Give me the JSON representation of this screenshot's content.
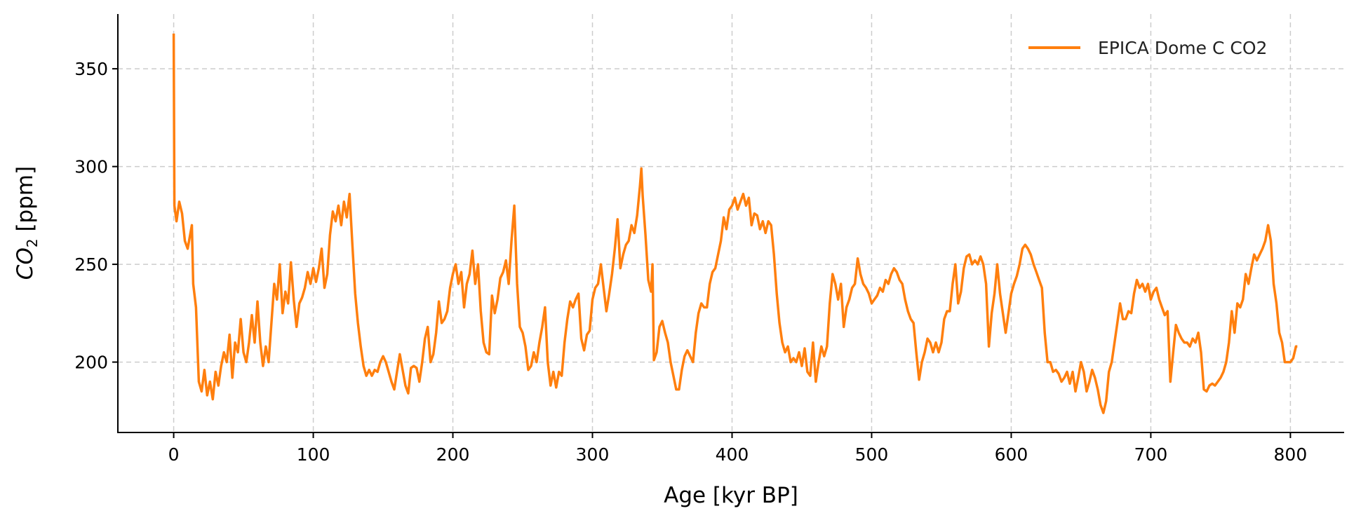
{
  "chart_data": {
    "type": "line",
    "title": "",
    "xlabel": "Age [kyr BP]",
    "ylabel_main": "CO",
    "ylabel_sub": "2",
    "ylabel_unit": " [ppm]",
    "xlim": [
      -40,
      838
    ],
    "ylim": [
      164,
      378
    ],
    "xticks": [
      0,
      100,
      200,
      300,
      400,
      500,
      600,
      700,
      800
    ],
    "yticks": [
      200,
      250,
      300,
      350
    ],
    "grid": true,
    "legend_position": "top-right",
    "series": [
      {
        "name": "EPICA Dome C CO2",
        "color": "#ff7f0e",
        "x": [
          0,
          0.5,
          2,
          4,
          6,
          8,
          10,
          12,
          13,
          14,
          16,
          18,
          20,
          22,
          24,
          26,
          28,
          30,
          32,
          34,
          36,
          38,
          40,
          42,
          44,
          46,
          48,
          50,
          52,
          54,
          56,
          58,
          60,
          62,
          64,
          66,
          68,
          70,
          72,
          74,
          76,
          78,
          80,
          82,
          84,
          86,
          88,
          90,
          92,
          94,
          96,
          98,
          100,
          102,
          104,
          106,
          108,
          110,
          112,
          114,
          116,
          118,
          120,
          122,
          124,
          126,
          128,
          130,
          132,
          134,
          136,
          138,
          140,
          142,
          144,
          146,
          148,
          150,
          152,
          154,
          156,
          158,
          160,
          162,
          164,
          166,
          168,
          170,
          172,
          174,
          176,
          178,
          180,
          182,
          184,
          186,
          188,
          190,
          192,
          194,
          196,
          198,
          200,
          202,
          204,
          206,
          208,
          210,
          212,
          214,
          216,
          218,
          220,
          222,
          224,
          226,
          228,
          230,
          232,
          234,
          236,
          238,
          240,
          242,
          244,
          246,
          248,
          250,
          252,
          254,
          256,
          258,
          260,
          262,
          264,
          266,
          268,
          270,
          272,
          274,
          276,
          278,
          280,
          282,
          284,
          286,
          288,
          290,
          292,
          294,
          296,
          298,
          300,
          302,
          304,
          306,
          308,
          310,
          312,
          314,
          316,
          318,
          320,
          322,
          324,
          326,
          328,
          330,
          332,
          334,
          335,
          336,
          338,
          340,
          342,
          343,
          344,
          346,
          348,
          350,
          352,
          354,
          356,
          358,
          360,
          362,
          364,
          366,
          368,
          370,
          372,
          374,
          376,
          378,
          380,
          382,
          384,
          386,
          388,
          390,
          392,
          394,
          396,
          398,
          400,
          402,
          404,
          406,
          408,
          410,
          412,
          414,
          416,
          418,
          420,
          422,
          424,
          426,
          428,
          430,
          432,
          434,
          436,
          438,
          440,
          442,
          444,
          446,
          448,
          450,
          452,
          454,
          456,
          458,
          460,
          462,
          464,
          466,
          468,
          470,
          472,
          474,
          476,
          478,
          480,
          482,
          484,
          486,
          488,
          490,
          492,
          494,
          496,
          498,
          500,
          502,
          504,
          506,
          508,
          510,
          512,
          514,
          516,
          518,
          520,
          522,
          524,
          526,
          528,
          530,
          532,
          534,
          536,
          538,
          540,
          542,
          544,
          546,
          548,
          550,
          552,
          554,
          556,
          558,
          560,
          562,
          564,
          566,
          568,
          570,
          572,
          574,
          576,
          578,
          580,
          582,
          584,
          586,
          588,
          590,
          592,
          594,
          596,
          598,
          600,
          602,
          604,
          606,
          608,
          610,
          612,
          614,
          616,
          618,
          620,
          622,
          624,
          626,
          628,
          630,
          632,
          634,
          636,
          638,
          640,
          642,
          644,
          646,
          648,
          650,
          652,
          654,
          656,
          658,
          660,
          662,
          664,
          666,
          668,
          670,
          672,
          674,
          676,
          678,
          680,
          682,
          684,
          686,
          688,
          690,
          692,
          694,
          696,
          698,
          700,
          702,
          704,
          706,
          708,
          710,
          712,
          714,
          716,
          718,
          720,
          722,
          724,
          726,
          728,
          730,
          732,
          734,
          736,
          738,
          740,
          742,
          744,
          746,
          748,
          750,
          752,
          754,
          756,
          758,
          760,
          762,
          764,
          766,
          768,
          770,
          772,
          774,
          776,
          778,
          780,
          782,
          784,
          786,
          788,
          790,
          792,
          794,
          796,
          798,
          800,
          802,
          804,
          805
        ],
        "y": [
          368,
          280,
          272,
          282,
          276,
          262,
          258,
          266,
          270,
          240,
          228,
          190,
          185,
          196,
          183,
          190,
          181,
          195,
          188,
          198,
          205,
          200,
          214,
          192,
          210,
          205,
          222,
          205,
          200,
          210,
          224,
          210,
          231,
          210,
          198,
          208,
          200,
          220,
          240,
          232,
          250,
          225,
          236,
          230,
          251,
          232,
          218,
          230,
          233,
          238,
          246,
          240,
          248,
          241,
          248,
          258,
          238,
          245,
          265,
          277,
          272,
          280,
          270,
          282,
          274,
          286,
          260,
          235,
          220,
          208,
          198,
          193,
          196,
          193,
          196,
          195,
          200,
          203,
          200,
          195,
          190,
          186,
          195,
          204,
          196,
          188,
          184,
          197,
          198,
          197,
          190,
          200,
          212,
          218,
          200,
          204,
          215,
          231,
          220,
          222,
          226,
          238,
          245,
          250,
          240,
          246,
          228,
          240,
          245,
          257,
          240,
          250,
          226,
          210,
          205,
          204,
          234,
          225,
          232,
          243,
          246,
          252,
          240,
          262,
          280,
          240,
          218,
          215,
          208,
          196,
          198,
          205,
          200,
          210,
          218,
          228,
          200,
          188,
          195,
          187,
          195,
          193,
          210,
          222,
          231,
          228,
          232,
          235,
          212,
          206,
          214,
          216,
          232,
          238,
          240,
          250,
          238,
          226,
          235,
          245,
          258,
          273,
          248,
          255,
          260,
          262,
          270,
          266,
          275,
          290,
          299,
          285,
          265,
          242,
          236,
          250,
          201,
          205,
          218,
          221,
          215,
          210,
          200,
          193,
          186,
          186,
          196,
          203,
          206,
          203,
          200,
          215,
          225,
          230,
          228,
          228,
          240,
          246,
          248,
          255,
          262,
          274,
          268,
          278,
          280,
          284,
          278,
          282,
          286,
          280,
          284,
          270,
          276,
          275,
          268,
          272,
          266,
          272,
          270,
          255,
          235,
          220,
          210,
          205,
          208,
          200,
          202,
          200,
          205,
          198,
          207,
          195,
          193,
          210,
          190,
          200,
          208,
          203,
          208,
          230,
          245,
          240,
          232,
          240,
          218,
          228,
          232,
          238,
          240,
          253,
          245,
          240,
          238,
          235,
          230,
          232,
          234,
          238,
          236,
          242,
          240,
          245,
          248,
          246,
          242,
          240,
          232,
          226,
          222,
          220,
          205,
          191,
          200,
          205,
          212,
          210,
          205,
          210,
          205,
          210,
          222,
          226,
          226,
          240,
          250,
          230,
          236,
          248,
          254,
          255,
          250,
          252,
          250,
          254,
          250,
          240,
          208,
          225,
          235,
          250,
          235,
          225,
          215,
          225,
          235,
          240,
          244,
          250,
          258,
          260,
          258,
          255,
          250,
          246,
          242,
          238,
          215,
          200,
          200,
          195,
          196,
          194,
          190,
          192,
          195,
          189,
          195,
          185,
          192,
          200,
          195,
          185,
          190,
          196,
          192,
          186,
          178,
          174,
          180,
          195,
          200,
          210,
          220,
          230,
          222,
          222,
          226,
          225,
          235,
          242,
          238,
          240,
          236,
          240,
          232,
          236,
          238,
          232,
          228,
          224,
          226,
          190,
          205,
          219,
          215,
          212,
          210,
          210,
          208,
          212,
          210,
          215,
          205,
          186,
          185,
          188,
          189,
          188,
          190,
          192,
          195,
          200,
          210,
          226,
          215,
          230,
          228,
          232,
          245,
          240,
          248,
          255,
          252,
          255,
          258,
          262,
          270,
          262,
          240,
          230,
          215,
          210,
          200,
          200,
          200,
          202,
          208,
          208
        ]
      }
    ]
  }
}
